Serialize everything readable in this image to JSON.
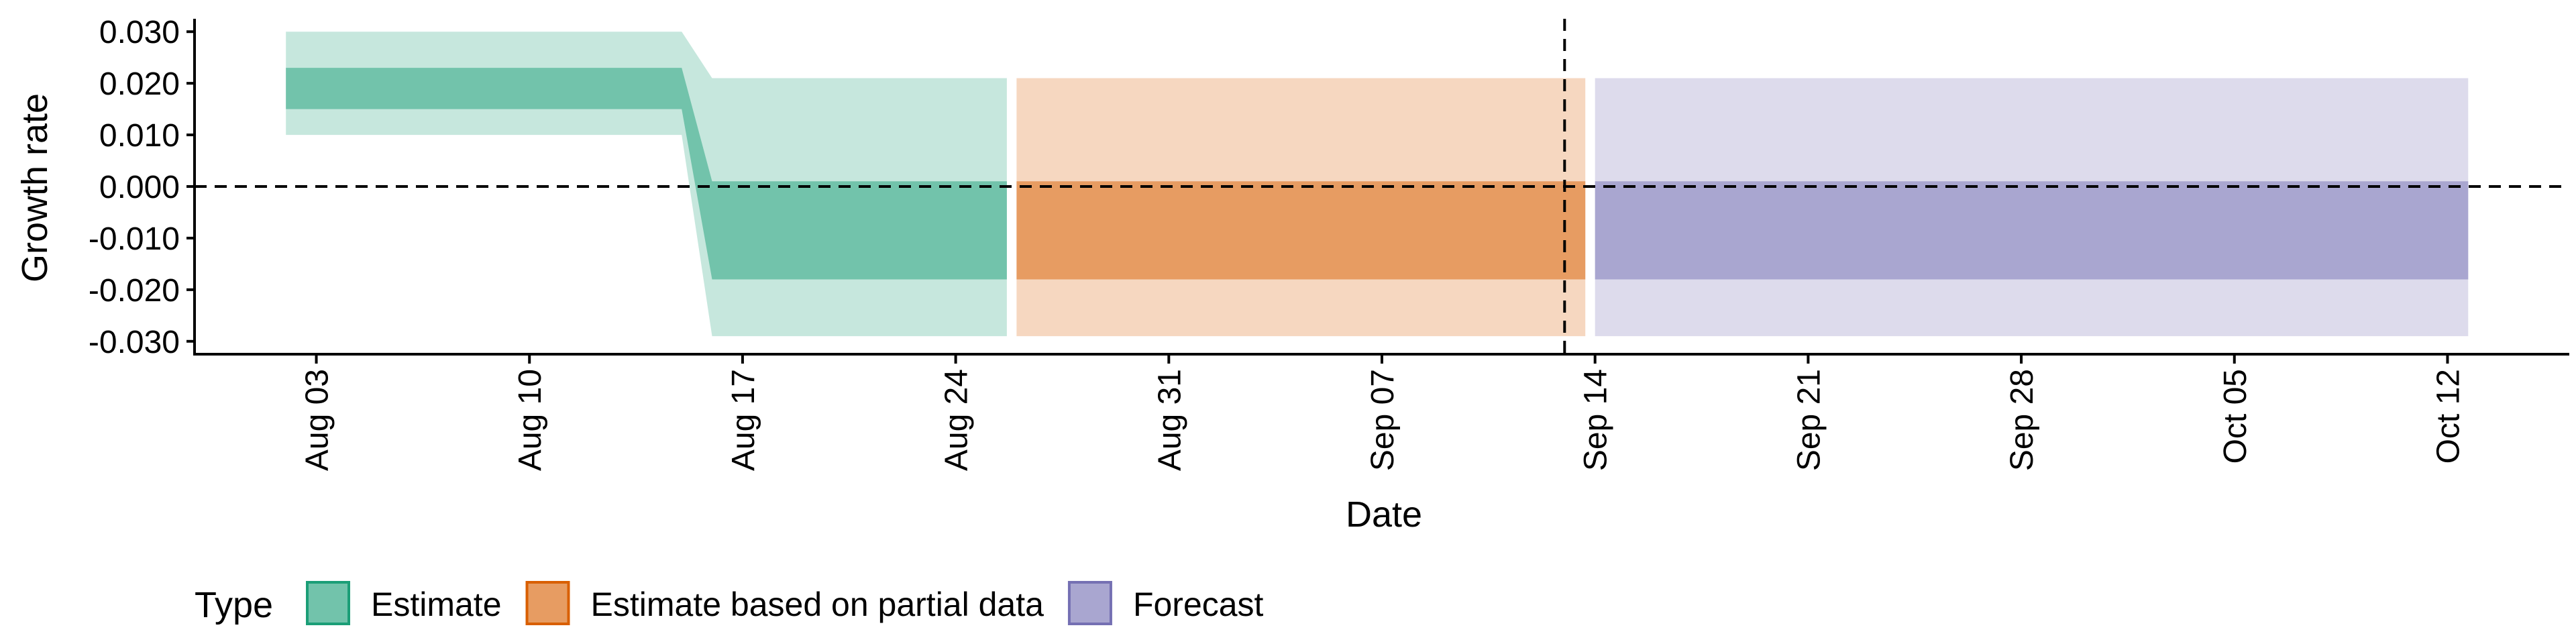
{
  "chart_data": {
    "type": "area",
    "xlabel": "Date",
    "ylabel": "Growth rate",
    "x_axis_type": "date",
    "xlim": [
      "2020-07-30",
      "2020-10-16"
    ],
    "ylim": [
      -0.0325,
      0.0325
    ],
    "x_ticks": [
      {
        "date": "2020-08-03",
        "label": "Aug 03"
      },
      {
        "date": "2020-08-10",
        "label": "Aug 10"
      },
      {
        "date": "2020-08-17",
        "label": "Aug 17"
      },
      {
        "date": "2020-08-24",
        "label": "Aug 24"
      },
      {
        "date": "2020-08-31",
        "label": "Aug 31"
      },
      {
        "date": "2020-09-07",
        "label": "Sep 07"
      },
      {
        "date": "2020-09-14",
        "label": "Sep 14"
      },
      {
        "date": "2020-09-21",
        "label": "Sep 21"
      },
      {
        "date": "2020-09-28",
        "label": "Sep 28"
      },
      {
        "date": "2020-10-05",
        "label": "Oct 05"
      },
      {
        "date": "2020-10-12",
        "label": "Oct 12"
      }
    ],
    "y_ticks": [
      {
        "value": 0.03,
        "label": "0.030"
      },
      {
        "value": 0.02,
        "label": "0.020"
      },
      {
        "value": 0.01,
        "label": "0.010"
      },
      {
        "value": 0.0,
        "label": "0.000"
      },
      {
        "value": -0.01,
        "label": "-0.010"
      },
      {
        "value": -0.02,
        "label": "-0.020"
      },
      {
        "value": -0.03,
        "label": "-0.030"
      }
    ],
    "hline": 0.0,
    "vline": "2020-09-13",
    "grid": false,
    "legend": {
      "title": "Type",
      "position": "bottom"
    },
    "series": [
      {
        "name": "Estimate",
        "fill": "#1b9e77",
        "x": [
          "2020-08-02",
          "2020-08-15",
          "2020-08-16",
          "2020-08-25"
        ],
        "outer_upper": [
          0.03,
          0.03,
          0.021,
          0.021
        ],
        "outer_lower": [
          0.01,
          0.01,
          -0.029,
          -0.029
        ],
        "inner_upper": [
          0.023,
          0.023,
          0.001,
          0.001
        ],
        "inner_lower": [
          0.015,
          0.015,
          -0.018,
          -0.018
        ]
      },
      {
        "name": "Estimate based on partial data",
        "fill": "#d95f02",
        "x": [
          "2020-08-26",
          "2020-09-13"
        ],
        "outer_upper": [
          0.021,
          0.021
        ],
        "outer_lower": [
          -0.029,
          -0.029
        ],
        "inner_upper": [
          0.001,
          0.001
        ],
        "inner_lower": [
          -0.018,
          -0.018
        ]
      },
      {
        "name": "Forecast",
        "fill": "#7570b3",
        "x": [
          "2020-09-14",
          "2020-10-12"
        ],
        "outer_upper": [
          0.021,
          0.021
        ],
        "outer_lower": [
          -0.029,
          -0.029
        ],
        "inner_upper": [
          0.001,
          0.001
        ],
        "inner_lower": [
          -0.018,
          -0.018
        ]
      }
    ]
  }
}
